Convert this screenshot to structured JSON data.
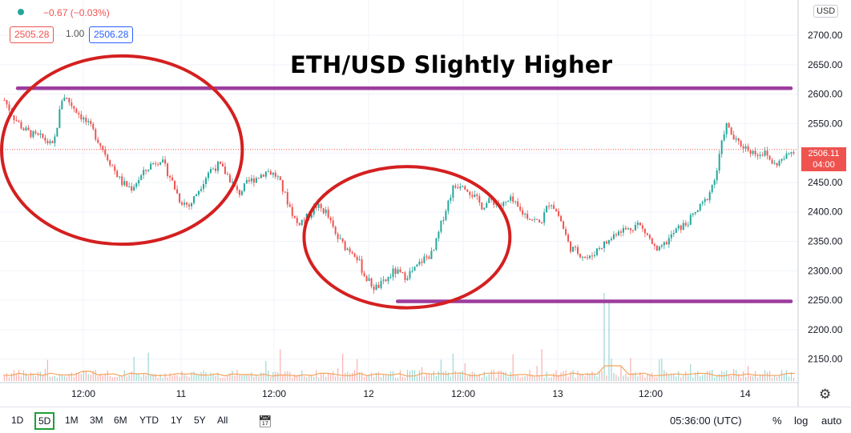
{
  "header": {
    "change": "−0.67 (−0.03%)",
    "bid": "2505.28",
    "spread": "1.00",
    "ask": "2506.28",
    "currency": "USD"
  },
  "title": "ETH/USD Slightly Higher",
  "current_price": {
    "price": "2506.11",
    "countdown": "04:00"
  },
  "toolbar": {
    "timeframes": [
      "1D",
      "5D",
      "1M",
      "3M",
      "6M",
      "YTD",
      "1Y",
      "5Y",
      "All"
    ],
    "active_timeframe": "5D",
    "time": "05:36:00 (UTC)",
    "percent": "%",
    "log": "log",
    "auto": "auto"
  },
  "colors": {
    "up": "#26a69a",
    "down": "#ef5350",
    "annotation_circle": "#d42020",
    "level_line": "#9c3d9e"
  },
  "chart_data": {
    "type": "candlestick",
    "title": "ETH/USD Slightly Higher",
    "x_tick_labels": [
      "12:00",
      "11",
      "12:00",
      "12",
      "12:00",
      "13",
      "12:00",
      "14"
    ],
    "y_ticks": [
      2150,
      2200,
      2250,
      2300,
      2350,
      2400,
      2450,
      2500,
      2550,
      2600,
      2650,
      2700
    ],
    "y_tick_labels": [
      "2150.00",
      "2200.00",
      "2250.00",
      "2300.00",
      "2350.00",
      "2400.00",
      "2450.00",
      "2500.00",
      "2550.00",
      "2600.00",
      "2650.00",
      "2700.00"
    ],
    "ylim": [
      2110,
      2760
    ],
    "current_price": 2506.11,
    "price_path": [
      2590,
      2560,
      2540,
      2530,
      2525,
      2510,
      2600,
      2580,
      2560,
      2540,
      2510,
      2480,
      2450,
      2440,
      2460,
      2480,
      2490,
      2460,
      2420,
      2410,
      2440,
      2470,
      2480,
      2460,
      2430,
      2450,
      2460,
      2470,
      2460,
      2420,
      2380,
      2390,
      2410,
      2400,
      2360,
      2340,
      2330,
      2290,
      2270,
      2280,
      2300,
      2290,
      2300,
      2320,
      2330,
      2390,
      2440,
      2450,
      2430,
      2410,
      2420,
      2410,
      2420,
      2400,
      2390,
      2380,
      2420,
      2390,
      2340,
      2330,
      2320,
      2340,
      2350,
      2370,
      2370,
      2380,
      2360,
      2330,
      2350,
      2370,
      2380,
      2400,
      2420,
      2460,
      2550,
      2520,
      2510,
      2500,
      2500,
      2480,
      2490,
      2506
    ],
    "volume_baseline": 2118,
    "levels": [
      {
        "price": 2610,
        "from": 0.0,
        "to": 0.995
      },
      {
        "price": 2248,
        "from": 0.48,
        "to": 0.995
      }
    ],
    "ellipses": [
      {
        "center_time": 0.15,
        "center_price": 2505,
        "rx_time": 0.152,
        "ry_price": 160
      },
      {
        "center_time": 0.51,
        "center_price": 2357,
        "rx_time": 0.13,
        "ry_price": 120
      }
    ],
    "grid": true,
    "price_scale": "right"
  }
}
